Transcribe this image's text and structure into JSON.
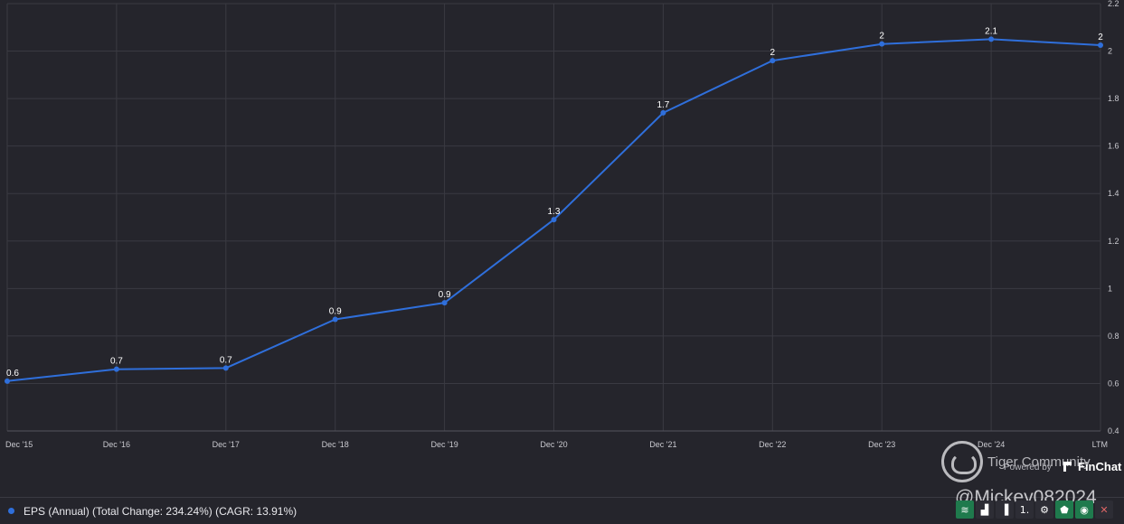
{
  "chart_data": {
    "type": "line",
    "categories": [
      "Dec '15",
      "Dec '16",
      "Dec '17",
      "Dec '18",
      "Dec '19",
      "Dec '20",
      "Dec '21",
      "Dec '22",
      "Dec '23",
      "Dec '24",
      "LTM"
    ],
    "series": [
      {
        "name": "EPS (Annual)",
        "color": "#2f6fdb",
        "values": [
          0.61,
          0.66,
          0.665,
          0.87,
          0.94,
          1.29,
          1.74,
          1.96,
          2.03,
          2.05,
          2.025
        ],
        "data_labels": [
          "0.6",
          "0.7",
          "0.7",
          "0.9",
          "0.9",
          "1.3",
          "1.7",
          "2",
          "2",
          "2.1",
          "2"
        ]
      }
    ],
    "y_ticks": [
      "0.4",
      "0.6",
      "0.8",
      "1",
      "1.2",
      "1.4",
      "1.6",
      "1.8",
      "2",
      "2.2"
    ],
    "ylim": [
      0.4,
      2.2
    ],
    "y_axis_position": "right",
    "grid": true
  },
  "legend": {
    "text": "EPS (Annual) (Total Change: 234.24%) (CAGR: 13.91%)",
    "color": "#2f6fdb"
  },
  "watermark": {
    "community": "Tiger Community",
    "powered_by": "Powered by",
    "brand": "FinChat",
    "handle": "@Mickey082024"
  },
  "toolbar": {
    "buttons": [
      {
        "name": "chart-style-icon",
        "glyph": "≋",
        "style": "green"
      },
      {
        "name": "bar-chart-icon",
        "glyph": "▟",
        "style": "plain"
      },
      {
        "name": "column-chart-icon",
        "glyph": "▐",
        "style": "plain"
      },
      {
        "name": "more-icon",
        "glyph": "1.",
        "style": "plain"
      },
      {
        "name": "gear-icon",
        "glyph": "⚙",
        "style": "plain"
      },
      {
        "name": "tag-icon",
        "glyph": "⬟",
        "style": "green"
      },
      {
        "name": "eye-icon",
        "glyph": "◉",
        "style": "green"
      },
      {
        "name": "close-icon",
        "glyph": "✕",
        "style": "close"
      }
    ]
  }
}
